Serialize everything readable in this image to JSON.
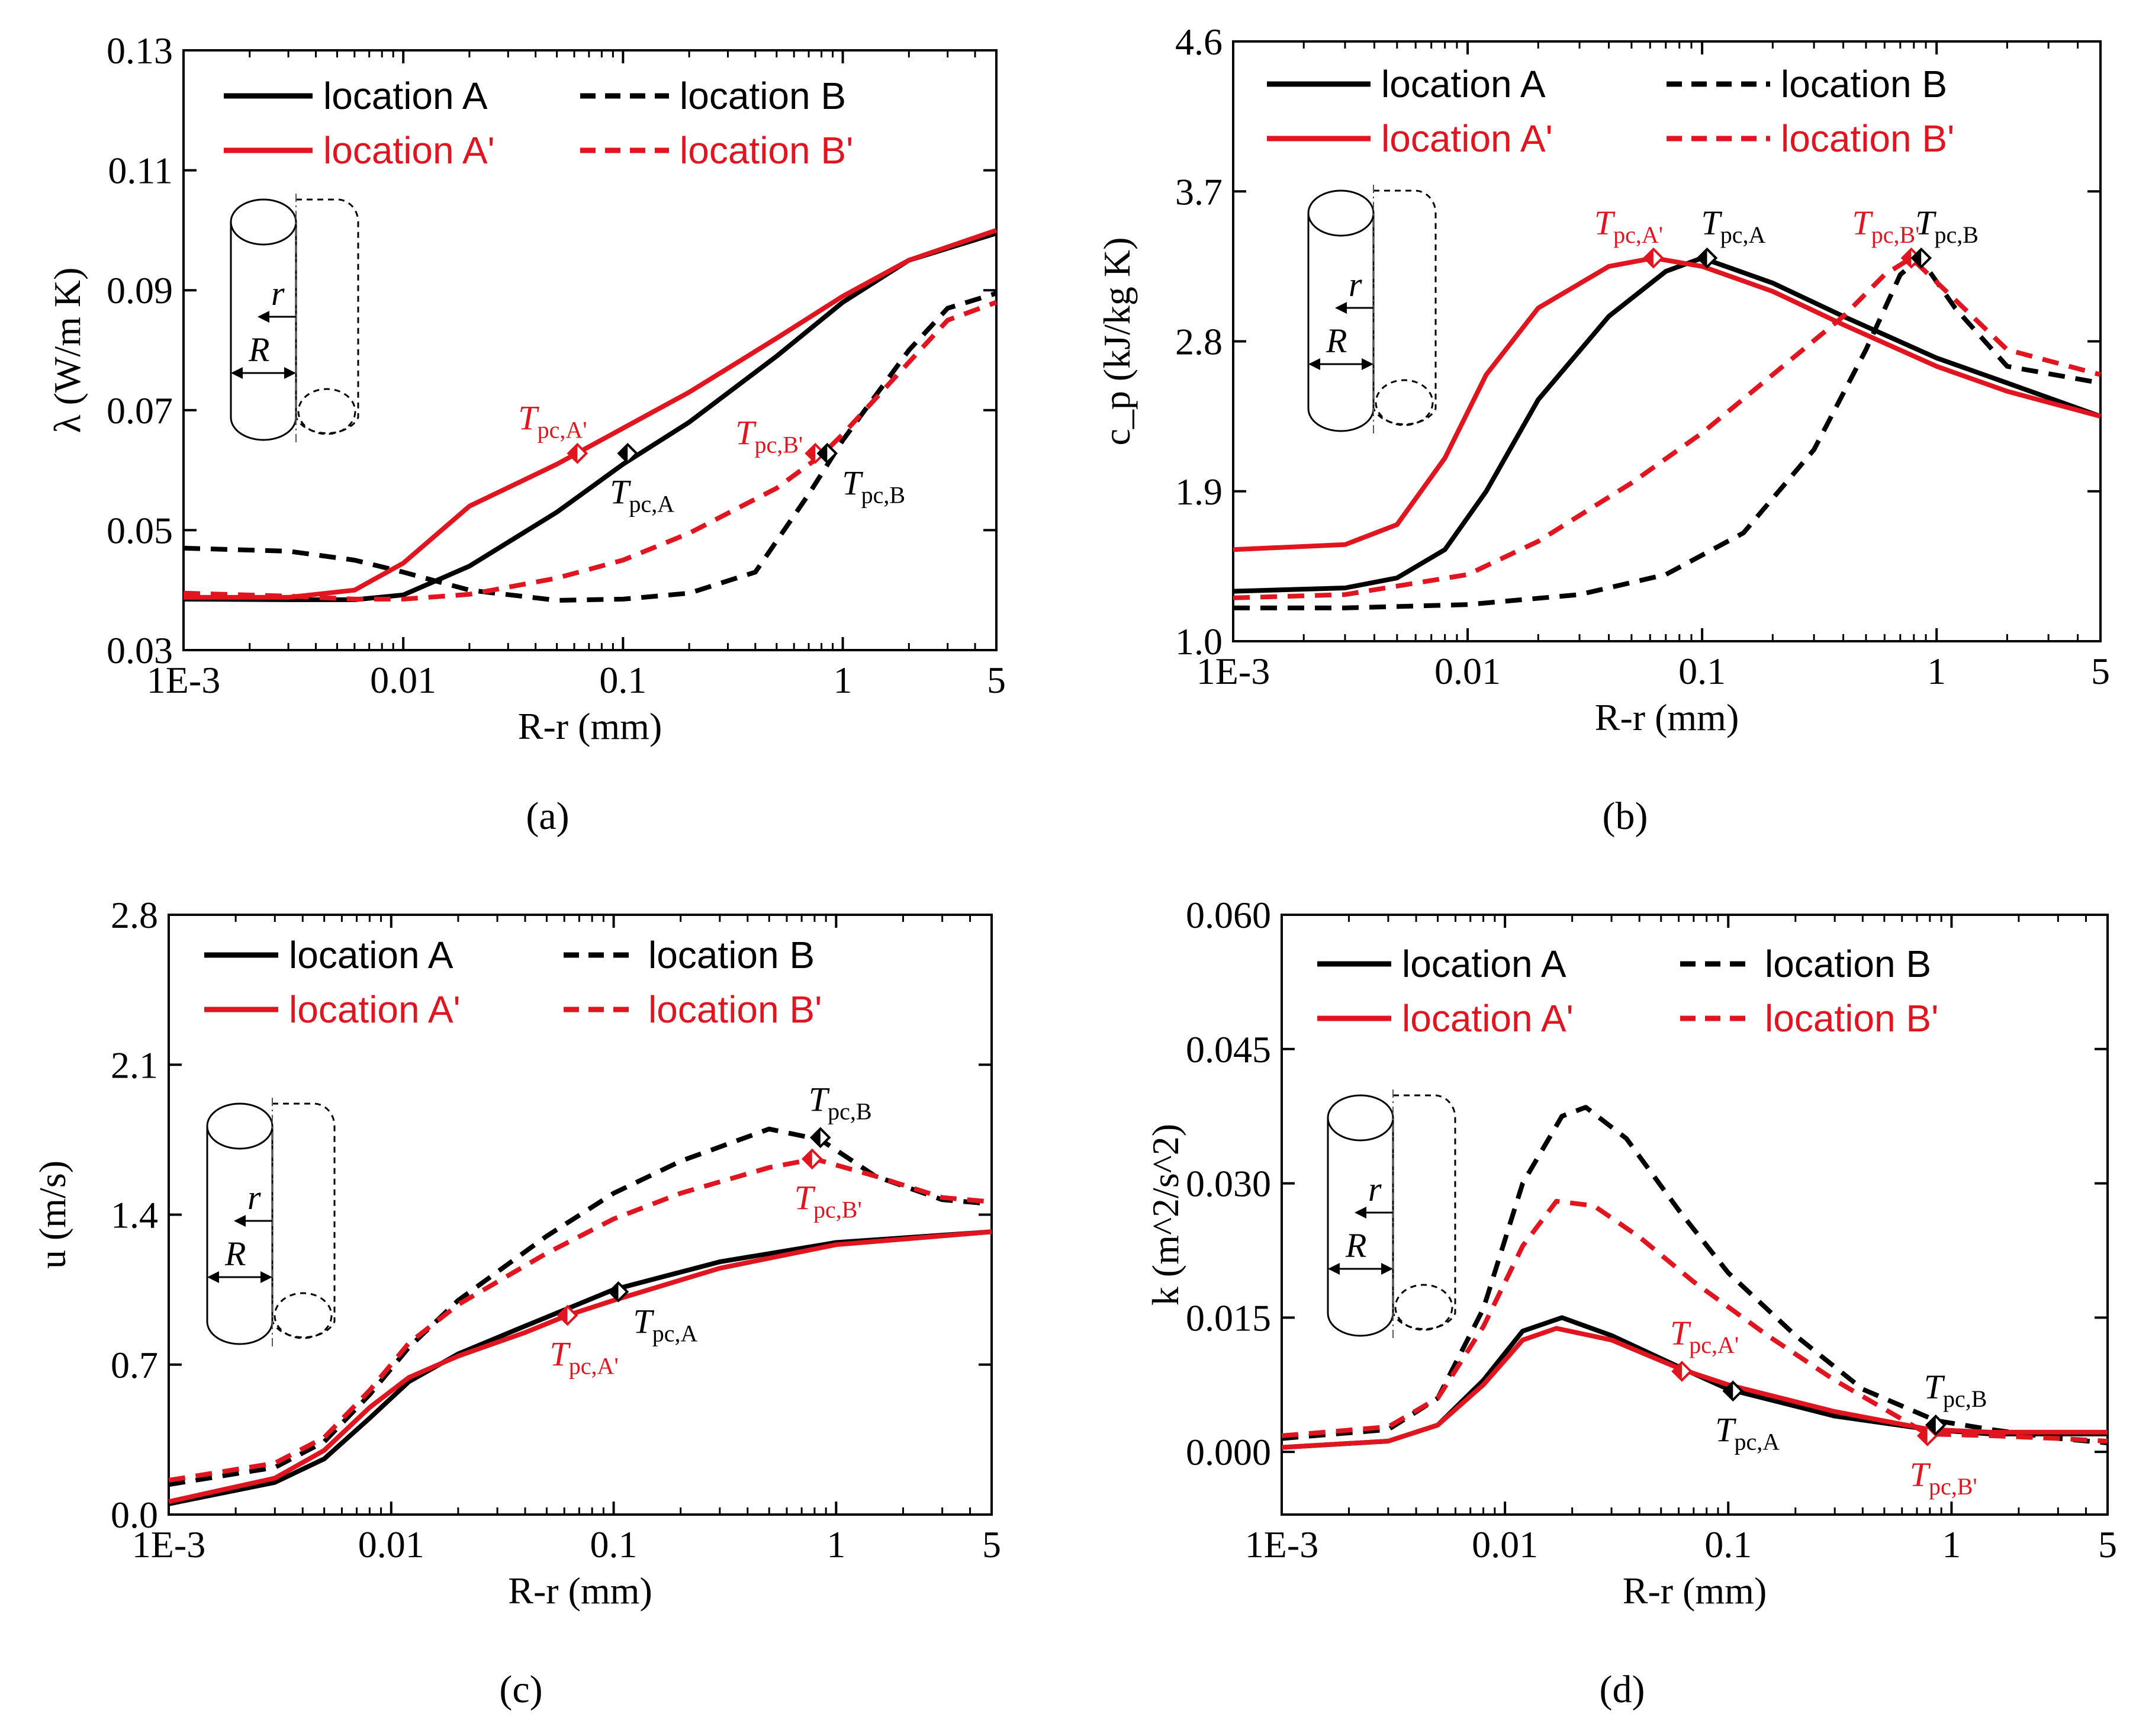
{
  "colors": {
    "black": "#000000",
    "red": "#e0151f"
  },
  "common": {
    "xlabel": "R-r (mm)",
    "x_tick_labels": [
      "1E-3",
      "0.01",
      "0.1",
      "1",
      "5"
    ],
    "legend": [
      "location A",
      "location B",
      "location A'",
      "location B'"
    ]
  },
  "chart_data": [
    {
      "type": "line",
      "panel_label": "(a)",
      "ylabel": "λ (W/m K)",
      "xscale": "log",
      "xlim": [
        0.001,
        5
      ],
      "ylim": [
        0.03,
        0.13
      ],
      "y_ticks": [
        "0.03",
        "0.05",
        "0.07",
        "0.09",
        "0.11",
        "0.13"
      ],
      "series": [
        {
          "name": "location A",
          "color": "#000000",
          "dash": false,
          "x": [
            0.001,
            0.003,
            0.006,
            0.01,
            0.02,
            0.05,
            0.1,
            0.2,
            0.5,
            1,
            2,
            5
          ],
          "y": [
            0.0385,
            0.0384,
            0.0384,
            0.0392,
            0.044,
            0.053,
            0.061,
            0.068,
            0.079,
            0.088,
            0.095,
            0.0995
          ]
        },
        {
          "name": "location B",
          "color": "#000000",
          "dash": true,
          "x": [
            0.001,
            0.003,
            0.006,
            0.01,
            0.02,
            0.05,
            0.1,
            0.2,
            0.4,
            0.7,
            1,
            2,
            3,
            5
          ],
          "y": [
            0.047,
            0.0465,
            0.045,
            0.043,
            0.04,
            0.0383,
            0.0385,
            0.0395,
            0.043,
            0.056,
            0.065,
            0.08,
            0.087,
            0.0895
          ]
        },
        {
          "name": "location A'",
          "color": "#e0151f",
          "dash": false,
          "x": [
            0.001,
            0.003,
            0.006,
            0.01,
            0.02,
            0.05,
            0.1,
            0.2,
            0.5,
            1,
            2,
            5
          ],
          "y": [
            0.0388,
            0.0388,
            0.04,
            0.0445,
            0.054,
            0.061,
            0.067,
            0.073,
            0.082,
            0.089,
            0.095,
            0.1
          ]
        },
        {
          "name": "location B'",
          "color": "#e0151f",
          "dash": true,
          "x": [
            0.001,
            0.003,
            0.006,
            0.01,
            0.02,
            0.05,
            0.1,
            0.2,
            0.5,
            0.8,
            1,
            2,
            3,
            5
          ],
          "y": [
            0.0395,
            0.039,
            0.0385,
            0.0385,
            0.0393,
            0.042,
            0.045,
            0.0495,
            0.057,
            0.0625,
            0.066,
            0.078,
            0.085,
            0.088
          ]
        }
      ],
      "markers": [
        {
          "x": 0.062,
          "y": 0.0628,
          "color": "#e0151f",
          "label": "T",
          "sub": "pc,A'",
          "pos": "above-left"
        },
        {
          "x": 0.105,
          "y": 0.0628,
          "color": "#000000",
          "label": "T",
          "sub": "pc,A",
          "pos": "below"
        },
        {
          "x": 0.75,
          "y": 0.0628,
          "color": "#e0151f",
          "label": "T",
          "sub": "pc,B'",
          "pos": "left"
        },
        {
          "x": 0.85,
          "y": 0.0628,
          "color": "#000000",
          "label": "T",
          "sub": "pc,B",
          "pos": "right-below"
        }
      ]
    },
    {
      "type": "line",
      "panel_label": "(b)",
      "ylabel": "c_p (kJ/kg K)",
      "xscale": "log",
      "xlim": [
        0.001,
        5
      ],
      "ylim": [
        1.0,
        4.6
      ],
      "y_ticks": [
        "1.0",
        "1.9",
        "2.8",
        "3.7",
        "4.6"
      ],
      "series": [
        {
          "name": "location A",
          "color": "#000000",
          "dash": false,
          "x": [
            0.001,
            0.003,
            0.005,
            0.008,
            0.012,
            0.02,
            0.04,
            0.07,
            0.1,
            0.2,
            0.4,
            1,
            2,
            5
          ],
          "y": [
            1.3,
            1.32,
            1.38,
            1.55,
            1.9,
            2.45,
            2.95,
            3.22,
            3.3,
            3.15,
            2.95,
            2.7,
            2.55,
            2.35
          ]
        },
        {
          "name": "location B",
          "color": "#000000",
          "dash": true,
          "x": [
            0.001,
            0.003,
            0.01,
            0.03,
            0.07,
            0.15,
            0.3,
            0.5,
            0.7,
            0.85,
            1.2,
            2,
            5
          ],
          "y": [
            1.2,
            1.2,
            1.22,
            1.28,
            1.4,
            1.65,
            2.15,
            2.75,
            3.2,
            3.3,
            3.0,
            2.65,
            2.55
          ]
        },
        {
          "name": "location A'",
          "color": "#e0151f",
          "dash": false,
          "x": [
            0.001,
            0.003,
            0.005,
            0.008,
            0.012,
            0.02,
            0.04,
            0.062,
            0.1,
            0.2,
            0.4,
            1,
            2,
            5
          ],
          "y": [
            1.55,
            1.58,
            1.7,
            2.1,
            2.6,
            3.0,
            3.25,
            3.3,
            3.25,
            3.1,
            2.9,
            2.65,
            2.5,
            2.35
          ]
        },
        {
          "name": "location B'",
          "color": "#e0151f",
          "dash": true,
          "x": [
            0.001,
            0.003,
            0.01,
            0.02,
            0.05,
            0.1,
            0.2,
            0.4,
            0.6,
            0.78,
            1.1,
            2,
            5
          ],
          "y": [
            1.26,
            1.28,
            1.4,
            1.6,
            1.95,
            2.25,
            2.6,
            2.95,
            3.2,
            3.3,
            3.1,
            2.75,
            2.6
          ]
        }
      ],
      "markers": [
        {
          "x": 0.062,
          "y": 3.3,
          "color": "#e0151f",
          "label": "T",
          "sub": "pc,A'",
          "pos": "above-left"
        },
        {
          "x": 0.105,
          "y": 3.3,
          "color": "#000000",
          "label": "T",
          "sub": "pc,A",
          "pos": "above-right"
        },
        {
          "x": 0.78,
          "y": 3.3,
          "color": "#e0151f",
          "label": "T",
          "sub": "pc,B'",
          "pos": "above-left"
        },
        {
          "x": 0.86,
          "y": 3.3,
          "color": "#000000",
          "label": "T",
          "sub": "pc,B",
          "pos": "above-right"
        }
      ]
    },
    {
      "type": "line",
      "panel_label": "(c)",
      "ylabel": "u (m/s)",
      "xscale": "log",
      "xlim": [
        0.001,
        5
      ],
      "ylim": [
        0.0,
        2.8
      ],
      "y_ticks": [
        "0.0",
        "0.7",
        "1.4",
        "2.1",
        "2.8"
      ],
      "series": [
        {
          "name": "location A",
          "color": "#000000",
          "dash": false,
          "x": [
            0.001,
            0.003,
            0.005,
            0.008,
            0.012,
            0.02,
            0.04,
            0.1,
            0.3,
            1,
            5
          ],
          "y": [
            0.05,
            0.15,
            0.26,
            0.45,
            0.62,
            0.75,
            0.88,
            1.05,
            1.18,
            1.27,
            1.32
          ]
        },
        {
          "name": "location B",
          "color": "#000000",
          "dash": true,
          "x": [
            0.001,
            0.003,
            0.005,
            0.008,
            0.012,
            0.02,
            0.05,
            0.1,
            0.2,
            0.5,
            0.85,
            1.5,
            3,
            5
          ],
          "y": [
            0.14,
            0.22,
            0.34,
            0.56,
            0.78,
            1.0,
            1.3,
            1.5,
            1.65,
            1.8,
            1.75,
            1.58,
            1.47,
            1.45
          ]
        },
        {
          "name": "location A'",
          "color": "#e0151f",
          "dash": false,
          "x": [
            0.001,
            0.003,
            0.005,
            0.008,
            0.012,
            0.02,
            0.04,
            0.062,
            0.1,
            0.3,
            1,
            5
          ],
          "y": [
            0.06,
            0.17,
            0.3,
            0.5,
            0.64,
            0.74,
            0.85,
            0.93,
            1.0,
            1.15,
            1.26,
            1.32
          ]
        },
        {
          "name": "location B'",
          "color": "#e0151f",
          "dash": true,
          "x": [
            0.001,
            0.003,
            0.005,
            0.008,
            0.012,
            0.02,
            0.05,
            0.1,
            0.2,
            0.5,
            0.8,
            1.5,
            3,
            5
          ],
          "y": [
            0.16,
            0.24,
            0.36,
            0.58,
            0.8,
            0.98,
            1.22,
            1.38,
            1.5,
            1.62,
            1.66,
            1.58,
            1.48,
            1.46
          ]
        }
      ],
      "markers": [
        {
          "x": 0.062,
          "y": 0.93,
          "color": "#e0151f",
          "label": "T",
          "sub": "pc,A'",
          "pos": "below"
        },
        {
          "x": 0.105,
          "y": 1.04,
          "color": "#000000",
          "label": "T",
          "sub": "pc,A",
          "pos": "right-below"
        },
        {
          "x": 0.78,
          "y": 1.66,
          "color": "#e0151f",
          "label": "T",
          "sub": "pc,B'",
          "pos": "below"
        },
        {
          "x": 0.85,
          "y": 1.76,
          "color": "#000000",
          "label": "T",
          "sub": "pc,B",
          "pos": "above"
        }
      ]
    },
    {
      "type": "line",
      "panel_label": "(d)",
      "ylabel": "k (m^2/s^2)",
      "xscale": "log",
      "xlim": [
        0.001,
        5
      ],
      "ylim": [
        -0.007,
        0.06
      ],
      "y_ticks": [
        "0.000",
        "0.015",
        "0.030",
        "0.045",
        "0.060"
      ],
      "y_tick_values": [
        0.0,
        0.015,
        0.03,
        0.045,
        0.06
      ],
      "series": [
        {
          "name": "location A",
          "color": "#000000",
          "dash": false,
          "x": [
            0.001,
            0.003,
            0.005,
            0.008,
            0.012,
            0.018,
            0.03,
            0.06,
            0.1,
            0.3,
            0.8,
            1.5,
            5
          ],
          "y": [
            0.0005,
            0.0012,
            0.003,
            0.008,
            0.0135,
            0.015,
            0.013,
            0.0095,
            0.007,
            0.004,
            0.0025,
            0.002,
            0.002
          ]
        },
        {
          "name": "location B",
          "color": "#000000",
          "dash": true,
          "x": [
            0.001,
            0.003,
            0.005,
            0.008,
            0.012,
            0.018,
            0.023,
            0.035,
            0.06,
            0.1,
            0.2,
            0.4,
            0.85,
            1.5,
            3,
            5
          ],
          "y": [
            0.0015,
            0.0025,
            0.006,
            0.016,
            0.03,
            0.0375,
            0.0385,
            0.035,
            0.027,
            0.02,
            0.013,
            0.007,
            0.0035,
            0.0025,
            0.0015,
            0.001
          ]
        },
        {
          "name": "location A'",
          "color": "#e0151f",
          "dash": false,
          "x": [
            0.001,
            0.003,
            0.005,
            0.008,
            0.012,
            0.017,
            0.03,
            0.062,
            0.1,
            0.3,
            0.8,
            1.5,
            5
          ],
          "y": [
            0.0005,
            0.0012,
            0.003,
            0.0075,
            0.0125,
            0.0138,
            0.0125,
            0.0092,
            0.0075,
            0.0045,
            0.0025,
            0.0022,
            0.0022
          ]
        },
        {
          "name": "location B'",
          "color": "#e0151f",
          "dash": true,
          "x": [
            0.001,
            0.003,
            0.005,
            0.008,
            0.012,
            0.017,
            0.025,
            0.04,
            0.07,
            0.15,
            0.3,
            0.78,
            1.5,
            3,
            5
          ],
          "y": [
            0.0018,
            0.0028,
            0.006,
            0.014,
            0.023,
            0.028,
            0.0275,
            0.024,
            0.019,
            0.013,
            0.008,
            0.002,
            0.0018,
            0.0015,
            0.0012
          ]
        }
      ],
      "markers": [
        {
          "x": 0.062,
          "y": 0.009,
          "color": "#e0151f",
          "label": "T",
          "sub": "pc,A'",
          "pos": "above"
        },
        {
          "x": 0.105,
          "y": 0.0068,
          "color": "#000000",
          "label": "T",
          "sub": "pc,A",
          "pos": "below"
        },
        {
          "x": 0.78,
          "y": 0.0018,
          "color": "#e0151f",
          "label": "T",
          "sub": "pc,B'",
          "pos": "below"
        },
        {
          "x": 0.85,
          "y": 0.003,
          "color": "#000000",
          "label": "T",
          "sub": "pc,B",
          "pos": "above"
        }
      ]
    }
  ],
  "schematic": {
    "r_label": "r",
    "R_label": "R"
  }
}
